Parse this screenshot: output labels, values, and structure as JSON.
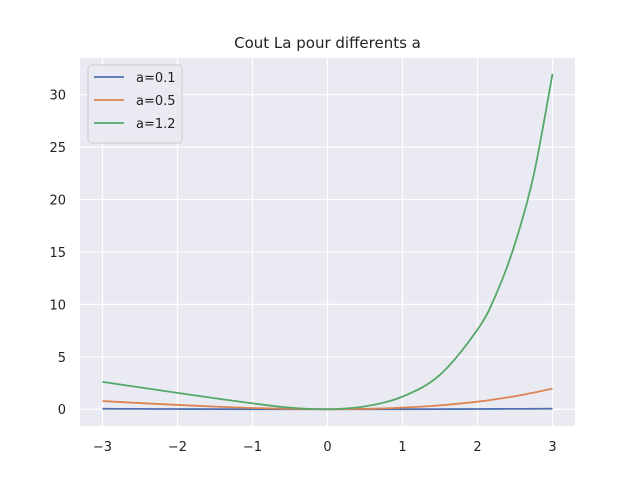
{
  "chart_data": {
    "type": "line",
    "title": "Cout La pour differents a",
    "xlabel": "",
    "ylabel": "",
    "xlim": [
      -3.3,
      3.3
    ],
    "ylim": [
      -1.6,
      33.5
    ],
    "xticks": [
      -3,
      -2,
      -1,
      0,
      1,
      2,
      3
    ],
    "xtick_labels": [
      "−3",
      "−2",
      "−1",
      "0",
      "1",
      "2",
      "3"
    ],
    "yticks": [
      0,
      5,
      10,
      15,
      20,
      25,
      30
    ],
    "ytick_labels": [
      "0",
      "5",
      "10",
      "15",
      "20",
      "25",
      "30"
    ],
    "grid": true,
    "legend_position": "top-left",
    "x": [
      -3,
      -2.5,
      -2,
      -1.5,
      -1,
      -0.5,
      0,
      0.5,
      1,
      1.5,
      2,
      2.25,
      2.5,
      2.75,
      3
    ],
    "series": [
      {
        "name": "a=0.1",
        "color": "#4c72b0",
        "values": [
          0.042,
          0.03,
          0.019,
          0.01,
          0.0048,
          0.0012,
          0,
          0.0013,
          0.0052,
          0.012,
          0.021,
          0.027,
          0.033,
          0.04,
          0.049
        ]
      },
      {
        "name": "a=0.5",
        "color": "#dd8452",
        "values": [
          0.78,
          0.59,
          0.41,
          0.25,
          0.12,
          0.031,
          0,
          0.034,
          0.15,
          0.37,
          0.72,
          0.96,
          1.24,
          1.58,
          1.97
        ]
      },
      {
        "name": "a=1.2",
        "color": "#55a868",
        "values": [
          2.61,
          2.08,
          1.56,
          1.05,
          0.56,
          0.15,
          0,
          0.27,
          1.2,
          3.28,
          7.59,
          10.99,
          15.8,
          22.36,
          31.99
        ]
      }
    ]
  }
}
